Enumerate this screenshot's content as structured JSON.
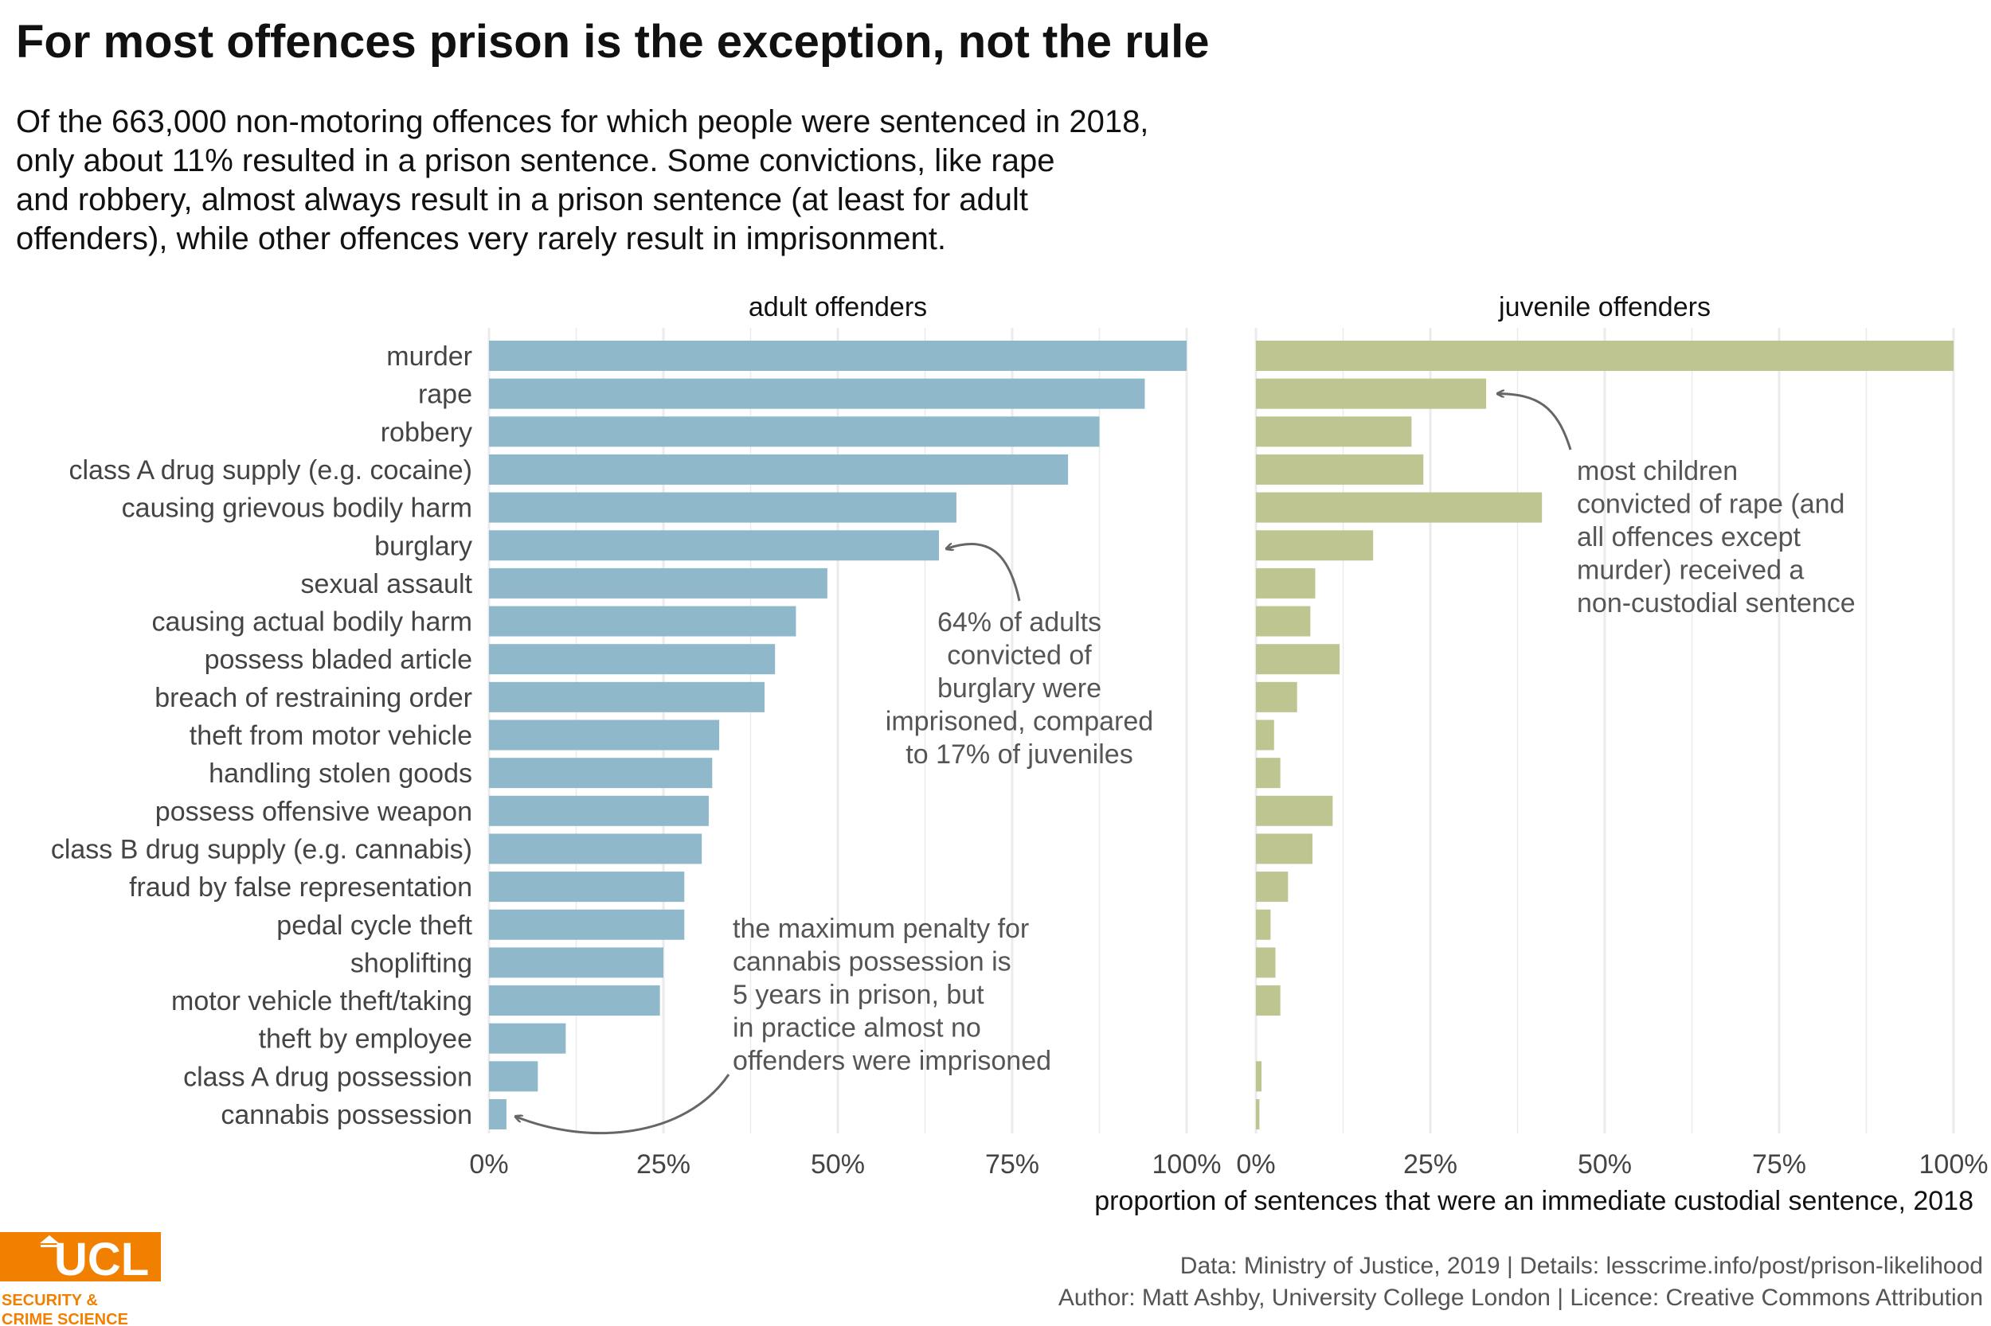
{
  "title": "For most offences prison is the exception, not the rule",
  "subtitle_lines": [
    "Of the 663,000 non-motoring offences for which people were sentenced in 2018,",
    "only about 11% resulted in a prison sentence. Some convictions, like rape",
    "and robbery, almost always result in a prison sentence (at least for adult",
    "offenders), while other offences very rarely result in imprisonment."
  ],
  "chart_data": {
    "type": "bar",
    "orientation": "horizontal",
    "categories": [
      "murder",
      "rape",
      "robbery",
      "class A drug supply (e.g. cocaine)",
      "causing grievous bodily harm",
      "burglary",
      "sexual assault",
      "causing actual bodily harm",
      "possess bladed article",
      "breach of restraining order",
      "theft from motor vehicle",
      "handling stolen goods",
      "possess offensive weapon",
      "class B drug supply (e.g. cannabis)",
      "fraud by false representation",
      "pedal cycle theft",
      "shoplifting",
      "motor vehicle theft/taking",
      "theft by employee",
      "class A drug possession",
      "cannabis possession"
    ],
    "panels": [
      {
        "name": "adult offenders",
        "color": "#8fb8cb",
        "values": [
          100,
          94,
          87.5,
          83,
          67,
          64.5,
          48.5,
          44,
          41,
          39.5,
          33,
          32,
          31.5,
          30.5,
          28,
          28,
          25,
          24.5,
          11,
          7,
          2.5
        ]
      },
      {
        "name": "juvenile offenders",
        "color": "#bec591",
        "values": [
          100,
          33,
          22.3,
          24,
          41,
          16.8,
          8.5,
          7.8,
          12,
          5.9,
          2.6,
          3.5,
          11,
          8.1,
          4.6,
          2.1,
          2.8,
          3.5,
          null,
          0.8,
          0.5
        ]
      }
    ],
    "x_ticks": [
      "0%",
      "25%",
      "50%",
      "75%",
      "100%"
    ],
    "xlim": [
      0,
      100
    ],
    "xlabel": "proportion of sentences that were an immediate custodial sentence, 2018",
    "grid": true,
    "annotations": [
      {
        "panel": 0,
        "lines": [
          "64% of adults",
          "convicted of",
          "burglary were",
          "imprisoned, compared",
          "to 17% of juveniles"
        ],
        "points_to": "burglary"
      },
      {
        "panel": 0,
        "lines": [
          "the maximum penalty for",
          "cannabis possession is",
          "5 years in prison, but",
          "in practice almost no",
          "offenders were imprisoned"
        ],
        "points_to": "cannabis possession"
      },
      {
        "panel": 1,
        "lines": [
          "most children",
          "convicted of rape (and",
          "all offences except",
          "murder) received a",
          "non-custodial sentence"
        ],
        "points_to": "rape"
      }
    ]
  },
  "footer": {
    "line1": "Data: Ministry of Justice, 2019 |  Details: lesscrime.info/post/prison-likelihood",
    "line2": "Author: Matt Ashby, University College London |  Licence: Creative Commons Attribution"
  },
  "logo": {
    "name": "UCL",
    "tagline_lines": [
      "SECURITY &",
      "CRIME SCIENCE"
    ],
    "color": "#f28000"
  }
}
